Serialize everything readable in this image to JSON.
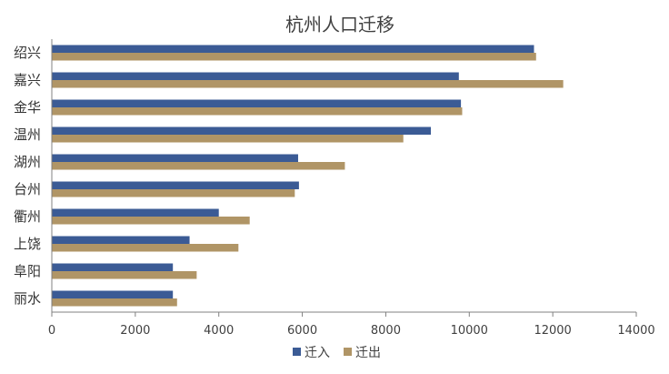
{
  "chart_data": {
    "type": "bar",
    "orientation": "horizontal",
    "title": "杭州人口迁移",
    "xlabel": "",
    "ylabel": "",
    "categories": [
      "绍兴",
      "嘉兴",
      "金华",
      "温州",
      "湖州",
      "台州",
      "衢州",
      "上饶",
      "阜阳",
      "丽水"
    ],
    "series": [
      {
        "name": "迁入",
        "color": "#3b5b95",
        "values": [
          11550,
          9750,
          9800,
          9080,
          5900,
          5920,
          4000,
          3300,
          2900,
          2900
        ]
      },
      {
        "name": "迁出",
        "color": "#b09566",
        "values": [
          11600,
          12250,
          9830,
          8420,
          7020,
          5820,
          4740,
          4470,
          3470,
          3000
        ]
      }
    ],
    "xlim": [
      0,
      14000
    ],
    "xticks": [
      0,
      2000,
      4000,
      6000,
      8000,
      10000,
      12000,
      14000
    ],
    "grid": false,
    "legend_position": "bottom"
  }
}
